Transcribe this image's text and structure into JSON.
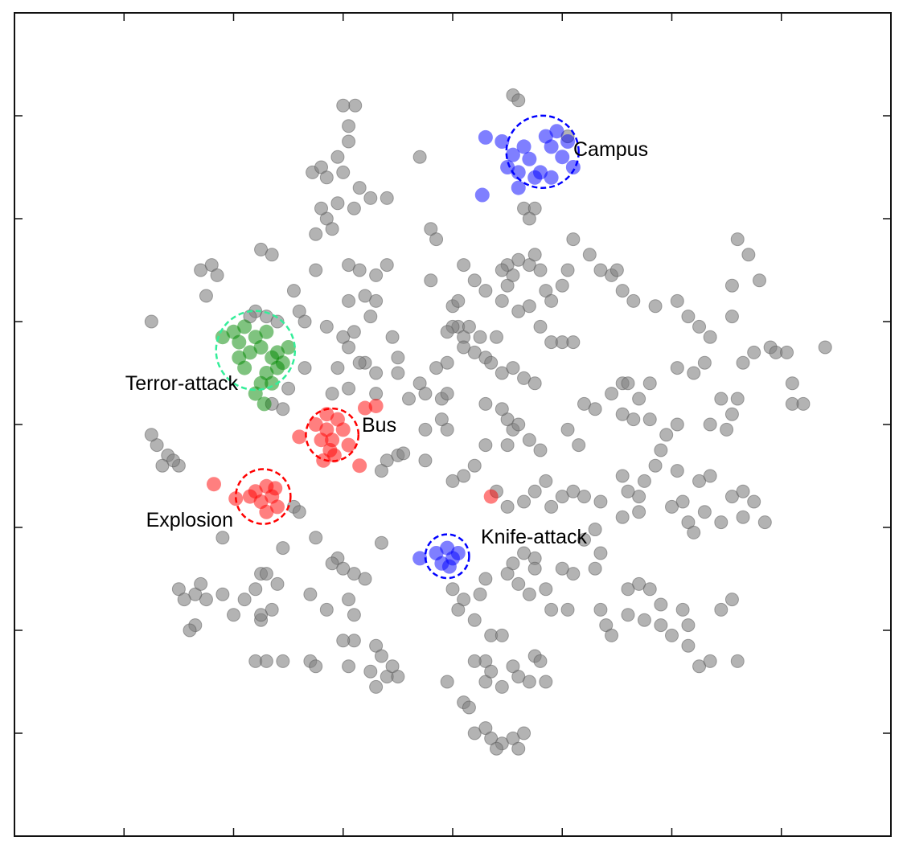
{
  "chart_data": {
    "type": "scatter",
    "xlim": [
      0,
      8
    ],
    "ylim": [
      0,
      8
    ],
    "grid": false,
    "x_ticks": [
      1,
      2,
      3,
      4,
      5,
      6,
      7
    ],
    "y_ticks": [
      1,
      2,
      3,
      4,
      5,
      6,
      7
    ],
    "colors": {
      "background": "#808080",
      "red": "#ff0000",
      "blue": "#0000ff",
      "green": "#008800",
      "green_ring": "#33ee99"
    },
    "clusters": [
      {
        "label": "Campus",
        "color": "#0000ff",
        "center": [
          4.82,
          6.65
        ],
        "r": 0.33,
        "points": [
          [
            4.3,
            6.79
          ],
          [
            4.45,
            6.75
          ],
          [
            4.5,
            6.5
          ],
          [
            4.55,
            6.62
          ],
          [
            4.6,
            6.45
          ],
          [
            4.65,
            6.7
          ],
          [
            4.7,
            6.58
          ],
          [
            4.75,
            6.4
          ],
          [
            4.85,
            6.8
          ],
          [
            4.9,
            6.7
          ],
          [
            4.95,
            6.85
          ],
          [
            5.0,
            6.6
          ],
          [
            5.05,
            6.75
          ],
          [
            5.1,
            6.5
          ],
          [
            4.8,
            6.45
          ],
          [
            4.6,
            6.3
          ],
          [
            4.9,
            6.4
          ],
          [
            4.27,
            6.23
          ]
        ]
      },
      {
        "label": "Terror-attack",
        "color": "#008800",
        "ring": "#33ee99",
        "center": [
          2.2,
          4.72
        ],
        "r": 0.36,
        "points": [
          [
            1.9,
            4.85
          ],
          [
            2.0,
            4.9
          ],
          [
            2.05,
            4.8
          ],
          [
            2.1,
            4.95
          ],
          [
            2.15,
            4.7
          ],
          [
            2.2,
            4.85
          ],
          [
            2.25,
            4.75
          ],
          [
            2.3,
            4.9
          ],
          [
            2.35,
            4.65
          ],
          [
            2.4,
            4.7
          ],
          [
            2.45,
            4.6
          ],
          [
            2.5,
            4.75
          ],
          [
            2.1,
            4.55
          ],
          [
            2.3,
            4.5
          ],
          [
            2.35,
            4.4
          ],
          [
            2.25,
            4.4
          ],
          [
            2.2,
            4.3
          ],
          [
            2.28,
            4.2
          ],
          [
            2.05,
            4.65
          ],
          [
            2.4,
            4.55
          ]
        ]
      },
      {
        "label": "Bus",
        "color": "#ff0000",
        "center": [
          2.9,
          3.9
        ],
        "r": 0.24,
        "points": [
          [
            2.75,
            4.0
          ],
          [
            2.85,
            3.95
          ],
          [
            2.9,
            3.85
          ],
          [
            3.0,
            3.95
          ],
          [
            2.95,
            4.05
          ],
          [
            2.8,
            3.85
          ],
          [
            3.05,
            3.8
          ],
          [
            2.88,
            3.75
          ],
          [
            2.85,
            4.1
          ],
          [
            2.6,
            3.88
          ],
          [
            3.2,
            4.16
          ],
          [
            3.3,
            4.18
          ],
          [
            3.15,
            3.6
          ],
          [
            2.82,
            3.65
          ],
          [
            2.92,
            3.7
          ]
        ]
      },
      {
        "label": "Explosion",
        "color": "#ff0000",
        "center": [
          2.27,
          3.3
        ],
        "r": 0.25,
        "points": [
          [
            2.2,
            3.35
          ],
          [
            2.3,
            3.4
          ],
          [
            2.35,
            3.3
          ],
          [
            2.25,
            3.25
          ],
          [
            2.4,
            3.2
          ],
          [
            2.3,
            3.15
          ],
          [
            2.15,
            3.3
          ],
          [
            2.38,
            3.38
          ],
          [
            1.82,
            3.42
          ],
          [
            2.02,
            3.28
          ],
          [
            4.35,
            3.3
          ]
        ]
      },
      {
        "label": "Knife-attack",
        "color": "#0000ff",
        "center": [
          3.95,
          2.72
        ],
        "r": 0.2,
        "points": [
          [
            3.85,
            2.75
          ],
          [
            3.95,
            2.8
          ],
          [
            4.0,
            2.7
          ],
          [
            3.9,
            2.65
          ],
          [
            4.05,
            2.75
          ],
          [
            3.7,
            2.7
          ],
          [
            3.97,
            2.62
          ]
        ]
      }
    ],
    "background_points": [
      [
        3.11,
        7.1
      ],
      [
        3.0,
        7.1
      ],
      [
        3.05,
        6.9
      ],
      [
        3.05,
        6.75
      ],
      [
        2.72,
        6.45
      ],
      [
        2.8,
        6.5
      ],
      [
        2.95,
        6.6
      ],
      [
        2.85,
        6.4
      ],
      [
        3.0,
        6.45
      ],
      [
        3.15,
        6.3
      ],
      [
        3.25,
        6.2
      ],
      [
        3.4,
        6.2
      ],
      [
        2.95,
        6.15
      ],
      [
        3.1,
        6.1
      ],
      [
        2.85,
        6.0
      ],
      [
        2.75,
        5.85
      ],
      [
        2.9,
        5.9
      ],
      [
        2.8,
        6.1
      ],
      [
        3.7,
        6.6
      ],
      [
        4.55,
        7.2
      ],
      [
        4.6,
        7.15
      ],
      [
        4.65,
        6.1
      ],
      [
        4.75,
        6.1
      ],
      [
        4.7,
        6.0
      ],
      [
        3.8,
        5.9
      ],
      [
        3.85,
        5.8
      ],
      [
        5.05,
        6.8
      ],
      [
        2.25,
        5.7
      ],
      [
        2.35,
        5.65
      ],
      [
        1.7,
        5.5
      ],
      [
        1.8,
        5.55
      ],
      [
        1.85,
        5.45
      ],
      [
        1.75,
        5.25
      ],
      [
        1.25,
        5.0
      ],
      [
        2.2,
        5.1
      ],
      [
        2.3,
        5.05
      ],
      [
        2.4,
        5.0
      ],
      [
        2.15,
        5.05
      ],
      [
        2.55,
        5.3
      ],
      [
        2.6,
        5.1
      ],
      [
        2.65,
        5.0
      ],
      [
        2.75,
        5.5
      ],
      [
        2.85,
        4.95
      ],
      [
        3.0,
        4.85
      ],
      [
        3.1,
        4.9
      ],
      [
        3.05,
        4.75
      ],
      [
        3.2,
        4.6
      ],
      [
        3.3,
        4.5
      ],
      [
        3.45,
        4.85
      ],
      [
        3.5,
        4.65
      ],
      [
        3.7,
        4.4
      ],
      [
        3.6,
        4.25
      ],
      [
        3.75,
        4.3
      ],
      [
        3.05,
        5.55
      ],
      [
        3.15,
        5.5
      ],
      [
        3.3,
        5.45
      ],
      [
        3.4,
        5.55
      ],
      [
        3.05,
        5.2
      ],
      [
        3.2,
        5.25
      ],
      [
        3.3,
        5.2
      ],
      [
        3.25,
        5.05
      ],
      [
        3.8,
        5.4
      ],
      [
        4.1,
        5.55
      ],
      [
        4.2,
        5.4
      ],
      [
        4.3,
        5.3
      ],
      [
        4.45,
        5.2
      ],
      [
        4.5,
        5.35
      ],
      [
        4.55,
        5.45
      ],
      [
        4.6,
        5.1
      ],
      [
        4.7,
        5.15
      ],
      [
        4.8,
        4.95
      ],
      [
        4.9,
        4.8
      ],
      [
        5.0,
        4.8
      ],
      [
        5.1,
        4.8
      ],
      [
        4.0,
        5.15
      ],
      [
        4.05,
        4.95
      ],
      [
        4.1,
        4.85
      ],
      [
        4.2,
        4.7
      ],
      [
        4.3,
        4.65
      ],
      [
        4.4,
        4.85
      ],
      [
        4.35,
        4.6
      ],
      [
        3.95,
        4.6
      ],
      [
        3.85,
        4.55
      ],
      [
        3.9,
        4.25
      ],
      [
        3.95,
        4.3
      ],
      [
        4.5,
        5.55
      ],
      [
        4.6,
        5.6
      ],
      [
        4.7,
        5.55
      ],
      [
        4.75,
        5.65
      ],
      [
        4.8,
        5.5
      ],
      [
        4.85,
        5.3
      ],
      [
        4.9,
        5.2
      ],
      [
        5.0,
        5.35
      ],
      [
        5.05,
        5.5
      ],
      [
        5.1,
        5.8
      ],
      [
        5.25,
        5.65
      ],
      [
        5.35,
        5.5
      ],
      [
        5.45,
        5.45
      ],
      [
        5.5,
        5.5
      ],
      [
        5.55,
        5.3
      ],
      [
        5.65,
        5.2
      ],
      [
        5.85,
        5.15
      ],
      [
        6.05,
        5.2
      ],
      [
        6.15,
        5.05
      ],
      [
        6.25,
        4.95
      ],
      [
        6.35,
        4.85
      ],
      [
        6.55,
        5.05
      ],
      [
        6.65,
        4.6
      ],
      [
        6.75,
        4.7
      ],
      [
        6.9,
        4.75
      ],
      [
        6.95,
        4.7
      ],
      [
        6.45,
        4.25
      ],
      [
        6.55,
        4.1
      ],
      [
        6.6,
        4.25
      ],
      [
        6.35,
        4.0
      ],
      [
        6.5,
        3.95
      ],
      [
        6.05,
        4.55
      ],
      [
        6.2,
        4.5
      ],
      [
        6.3,
        4.6
      ],
      [
        6.55,
        5.35
      ],
      [
        6.7,
        5.65
      ],
      [
        6.6,
        5.8
      ],
      [
        6.8,
        5.4
      ],
      [
        7.05,
        4.7
      ],
      [
        7.1,
        4.2
      ],
      [
        7.2,
        4.2
      ],
      [
        7.4,
        4.75
      ],
      [
        7.1,
        4.4
      ],
      [
        5.2,
        4.2
      ],
      [
        5.3,
        4.15
      ],
      [
        5.45,
        4.3
      ],
      [
        5.55,
        4.4
      ],
      [
        5.6,
        4.4
      ],
      [
        5.7,
        4.25
      ],
      [
        5.55,
        4.1
      ],
      [
        5.65,
        4.05
      ],
      [
        5.8,
        4.05
      ],
      [
        5.8,
        4.4
      ],
      [
        6.05,
        4.0
      ],
      [
        5.95,
        3.9
      ],
      [
        5.9,
        3.75
      ],
      [
        5.85,
        3.6
      ],
      [
        5.75,
        3.45
      ],
      [
        5.7,
        3.3
      ],
      [
        5.6,
        3.35
      ],
      [
        5.55,
        3.5
      ],
      [
        5.15,
        3.8
      ],
      [
        5.05,
        3.95
      ],
      [
        4.8,
        3.75
      ],
      [
        4.7,
        3.85
      ],
      [
        4.55,
        3.95
      ],
      [
        4.5,
        4.05
      ],
      [
        4.45,
        4.15
      ],
      [
        4.5,
        3.8
      ],
      [
        4.3,
        3.8
      ],
      [
        4.2,
        3.6
      ],
      [
        4.1,
        3.5
      ],
      [
        4.0,
        3.45
      ],
      [
        3.95,
        3.95
      ],
      [
        3.9,
        4.05
      ],
      [
        3.75,
        3.95
      ],
      [
        3.4,
        3.65
      ],
      [
        3.5,
        3.7
      ],
      [
        3.55,
        3.72
      ],
      [
        3.35,
        3.55
      ],
      [
        3.75,
        3.65
      ],
      [
        4.4,
        3.35
      ],
      [
        4.5,
        3.2
      ],
      [
        4.65,
        3.25
      ],
      [
        4.75,
        3.35
      ],
      [
        4.85,
        3.45
      ],
      [
        4.9,
        3.2
      ],
      [
        5.0,
        3.3
      ],
      [
        5.1,
        3.35
      ],
      [
        5.2,
        3.3
      ],
      [
        5.35,
        3.25
      ],
      [
        5.55,
        3.1
      ],
      [
        5.7,
        3.15
      ],
      [
        6.05,
        3.55
      ],
      [
        6.25,
        3.45
      ],
      [
        6.35,
        3.5
      ],
      [
        6.55,
        3.3
      ],
      [
        6.65,
        3.35
      ],
      [
        6.65,
        3.1
      ],
      [
        6.75,
        3.25
      ],
      [
        6.85,
        3.05
      ],
      [
        6.45,
        3.05
      ],
      [
        6.3,
        3.15
      ],
      [
        6.1,
        3.25
      ],
      [
        6.0,
        3.2
      ],
      [
        6.15,
        3.05
      ],
      [
        6.2,
        2.95
      ],
      [
        5.3,
        2.98
      ],
      [
        5.2,
        2.88
      ],
      [
        5.35,
        2.75
      ],
      [
        5.3,
        2.6
      ],
      [
        5.1,
        2.55
      ],
      [
        5.0,
        2.6
      ],
      [
        4.75,
        2.7
      ],
      [
        4.65,
        2.75
      ],
      [
        4.55,
        2.65
      ],
      [
        4.5,
        2.55
      ],
      [
        4.3,
        2.5
      ],
      [
        4.25,
        2.35
      ],
      [
        4.0,
        2.4
      ],
      [
        4.1,
        2.3
      ],
      [
        4.05,
        2.2
      ],
      [
        4.2,
        2.1
      ],
      [
        4.6,
        2.45
      ],
      [
        4.7,
        2.35
      ],
      [
        4.75,
        2.6
      ],
      [
        4.85,
        2.4
      ],
      [
        4.9,
        2.2
      ],
      [
        5.05,
        2.2
      ],
      [
        5.35,
        2.2
      ],
      [
        5.4,
        2.05
      ],
      [
        5.6,
        2.4
      ],
      [
        5.7,
        2.45
      ],
      [
        5.8,
        2.4
      ],
      [
        5.9,
        2.25
      ],
      [
        5.9,
        2.05
      ],
      [
        5.75,
        2.1
      ],
      [
        5.6,
        2.15
      ],
      [
        5.45,
        1.95
      ],
      [
        6.0,
        1.95
      ],
      [
        6.1,
        2.2
      ],
      [
        6.15,
        2.05
      ],
      [
        6.15,
        1.85
      ],
      [
        6.25,
        1.65
      ],
      [
        6.35,
        1.7
      ],
      [
        6.45,
        2.2
      ],
      [
        6.55,
        2.3
      ],
      [
        6.6,
        1.7
      ],
      [
        4.35,
        1.95
      ],
      [
        4.45,
        1.95
      ],
      [
        4.55,
        1.65
      ],
      [
        4.75,
        1.75
      ],
      [
        4.6,
        1.55
      ],
      [
        4.7,
        1.5
      ],
      [
        4.8,
        1.7
      ],
      [
        4.85,
        1.5
      ],
      [
        4.45,
        1.45
      ],
      [
        4.3,
        1.5
      ],
      [
        4.3,
        1.7
      ],
      [
        4.2,
        1.7
      ],
      [
        4.1,
        1.3
      ],
      [
        4.15,
        1.25
      ],
      [
        4.2,
        1.0
      ],
      [
        4.3,
        1.05
      ],
      [
        4.35,
        0.95
      ],
      [
        4.45,
        0.9
      ],
      [
        4.55,
        0.95
      ],
      [
        4.65,
        1.0
      ],
      [
        4.6,
        0.85
      ],
      [
        4.4,
        0.85
      ],
      [
        3.95,
        1.5
      ],
      [
        4.35,
        1.6
      ],
      [
        3.3,
        1.85
      ],
      [
        3.35,
        1.75
      ],
      [
        3.4,
        1.55
      ],
      [
        3.45,
        1.65
      ],
      [
        3.5,
        1.55
      ],
      [
        3.25,
        1.6
      ],
      [
        3.1,
        1.9
      ],
      [
        3.0,
        1.9
      ],
      [
        3.3,
        1.45
      ],
      [
        3.05,
        1.65
      ],
      [
        3.1,
        2.15
      ],
      [
        3.05,
        2.3
      ],
      [
        3.1,
        2.55
      ],
      [
        3.2,
        2.5
      ],
      [
        2.85,
        2.2
      ],
      [
        2.95,
        2.7
      ],
      [
        2.7,
        2.35
      ],
      [
        2.2,
        2.4
      ],
      [
        2.25,
        2.55
      ],
      [
        2.4,
        2.45
      ],
      [
        2.35,
        2.2
      ],
      [
        2.25,
        2.1
      ],
      [
        2.1,
        2.3
      ],
      [
        2.0,
        2.15
      ],
      [
        1.9,
        2.35
      ],
      [
        1.75,
        2.3
      ],
      [
        1.65,
        2.35
      ],
      [
        1.7,
        2.45
      ],
      [
        1.5,
        2.4
      ],
      [
        1.55,
        2.3
      ],
      [
        1.65,
        2.05
      ],
      [
        1.6,
        2.0
      ],
      [
        2.45,
        2.8
      ],
      [
        3.35,
        2.85
      ],
      [
        2.9,
        2.65
      ],
      [
        3.0,
        2.6
      ],
      [
        2.55,
        3.2
      ],
      [
        2.6,
        3.15
      ],
      [
        2.75,
        2.9
      ],
      [
        1.9,
        2.9
      ],
      [
        2.3,
        2.55
      ],
      [
        2.25,
        2.15
      ],
      [
        2.2,
        1.7
      ],
      [
        2.3,
        1.7
      ],
      [
        2.45,
        1.7
      ],
      [
        2.7,
        1.7
      ],
      [
        2.75,
        1.65
      ],
      [
        1.3,
        3.8
      ],
      [
        1.25,
        3.9
      ],
      [
        1.4,
        3.7
      ],
      [
        1.35,
        3.6
      ],
      [
        1.5,
        3.6
      ],
      [
        1.45,
        3.65
      ],
      [
        2.65,
        4.55
      ],
      [
        2.9,
        4.3
      ],
      [
        3.05,
        4.35
      ],
      [
        3.3,
        4.3
      ],
      [
        3.15,
        4.6
      ],
      [
        2.95,
        4.55
      ],
      [
        3.5,
        4.5
      ],
      [
        2.45,
        4.15
      ],
      [
        2.35,
        4.2
      ],
      [
        2.5,
        4.35
      ],
      [
        4.0,
        4.95
      ],
      [
        3.95,
        4.9
      ],
      [
        4.05,
        5.2
      ],
      [
        4.1,
        4.75
      ],
      [
        4.25,
        4.85
      ],
      [
        4.15,
        4.95
      ],
      [
        4.45,
        5.5
      ],
      [
        4.45,
        4.5
      ],
      [
        4.55,
        4.55
      ],
      [
        4.65,
        4.45
      ],
      [
        4.75,
        4.4
      ],
      [
        4.3,
        4.2
      ],
      [
        4.6,
        4.0
      ]
    ]
  }
}
